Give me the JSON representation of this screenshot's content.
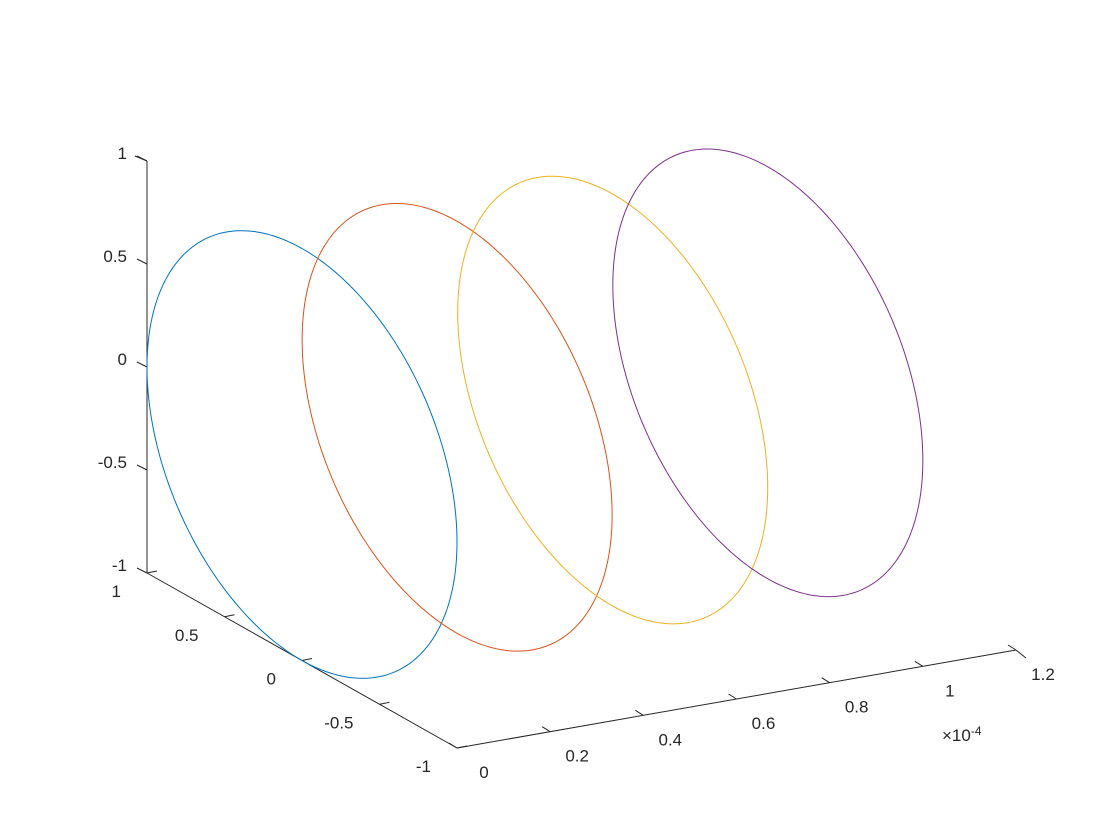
{
  "chart_data": {
    "type": "line",
    "projection": "3d",
    "title": "",
    "xlabel": "",
    "ylabel": "",
    "zlabel": "",
    "grid": false,
    "legend": "none",
    "x_exponent_label": "×10",
    "x_exponent_power": "-4",
    "x_ticks": [
      "0",
      "0.2",
      "0.4",
      "0.6",
      "0.8",
      "1",
      "1.2"
    ],
    "x_tick_values": [
      0,
      0.2,
      0.4,
      0.6,
      0.8,
      1.0,
      1.2
    ],
    "xlim": [
      0,
      1.2
    ],
    "y_ticks": [
      "-1",
      "-0.5",
      "0",
      "0.5",
      "1"
    ],
    "y_tick_values": [
      -1,
      -0.5,
      0,
      0.5,
      1
    ],
    "ylim": [
      -1,
      1
    ],
    "z_ticks": [
      "-1",
      "-0.5",
      "0",
      "0.5",
      "1"
    ],
    "z_tick_values": [
      -1,
      -0.5,
      0,
      0.5,
      1
    ],
    "zlim": [
      -1,
      1
    ],
    "series": [
      {
        "x": 0.0,
        "radius": 1,
        "color": "#0072BD"
      },
      {
        "x": 0.333,
        "radius": 1,
        "color": "#D95319"
      },
      {
        "x": 0.667,
        "radius": 1,
        "color": "#EDB120"
      },
      {
        "x": 1.0,
        "radius": 1,
        "color": "#7E2F8E"
      }
    ]
  }
}
